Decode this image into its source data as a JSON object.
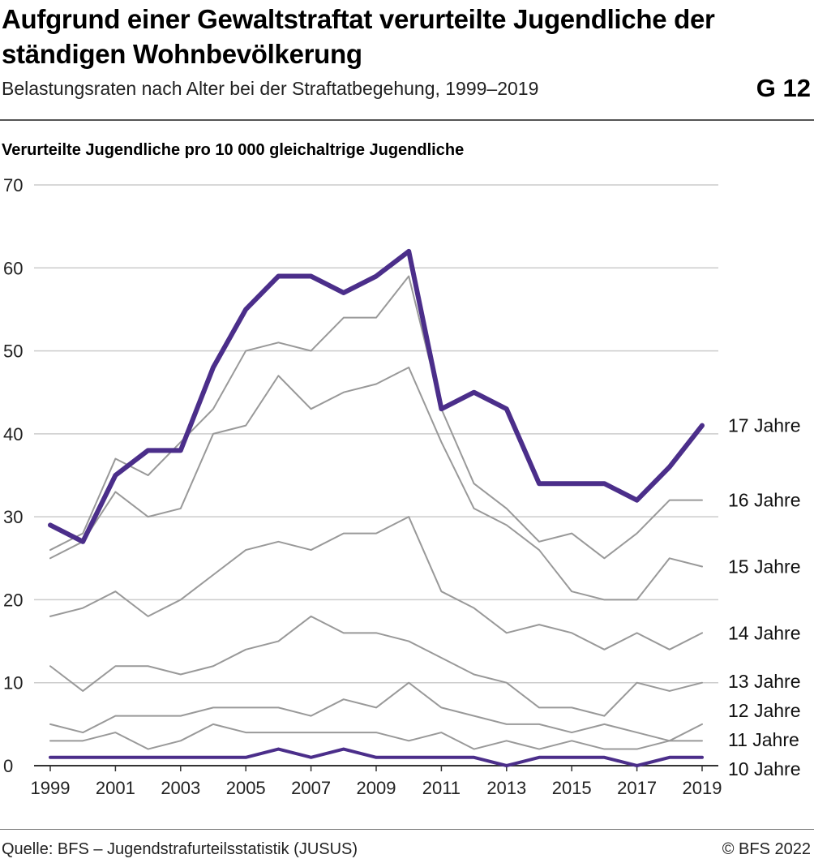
{
  "header": {
    "title": "Aufgrund einer Gewaltstraftat verurteilte Jugendliche der ständigen Wohnbevölkerung",
    "subtitle": "Belastungsraten nach Alter bei der Straftatbegehung, 1999–2019",
    "chart_id": "G 12"
  },
  "footer": {
    "source": "Quelle: BFS – Jugendstrafurteilsstatistik (JUSUS)",
    "copyright": "© BFS 2022"
  },
  "colors": {
    "highlight": "#4b2e8a",
    "other": "#999999",
    "grid": "#cccccc"
  },
  "chart_data": {
    "type": "line",
    "ylabel": "Verurteilte Jugendliche pro 10 000 gleichaltrige Jugendliche",
    "ylim": [
      0,
      70
    ],
    "yticks": [
      0,
      10,
      20,
      30,
      40,
      50,
      60,
      70
    ],
    "x": [
      1999,
      2000,
      2001,
      2002,
      2003,
      2004,
      2005,
      2006,
      2007,
      2008,
      2009,
      2010,
      2011,
      2012,
      2013,
      2014,
      2015,
      2016,
      2017,
      2018,
      2019
    ],
    "xticks": [
      1999,
      2001,
      2003,
      2005,
      2007,
      2009,
      2011,
      2013,
      2015,
      2017,
      2019
    ],
    "grid": true,
    "legend": "direct labels at line ends",
    "series": [
      {
        "name": "17 Jahre",
        "highlight": true,
        "values": [
          29,
          27,
          35,
          38,
          38,
          48,
          55,
          59,
          59,
          57,
          59,
          62,
          43,
          45,
          43,
          34,
          34,
          34,
          32,
          36,
          41
        ]
      },
      {
        "name": "16 Jahre",
        "highlight": false,
        "values": [
          26,
          28,
          37,
          35,
          39,
          43,
          50,
          51,
          50,
          54,
          54,
          59,
          43,
          34,
          31,
          27,
          28,
          25,
          28,
          32,
          32
        ]
      },
      {
        "name": "15 Jahre",
        "highlight": false,
        "values": [
          25,
          27,
          33,
          30,
          31,
          40,
          41,
          47,
          43,
          45,
          46,
          48,
          39,
          31,
          29,
          26,
          21,
          20,
          20,
          25,
          24
        ]
      },
      {
        "name": "14 Jahre",
        "highlight": false,
        "values": [
          18,
          19,
          21,
          18,
          20,
          23,
          26,
          27,
          26,
          28,
          28,
          30,
          21,
          19,
          16,
          17,
          16,
          14,
          16,
          14,
          16
        ]
      },
      {
        "name": "13 Jahre",
        "highlight": false,
        "values": [
          12,
          9,
          12,
          12,
          11,
          12,
          14,
          15,
          18,
          16,
          16,
          15,
          13,
          11,
          10,
          7,
          7,
          6,
          10,
          9,
          10
        ]
      },
      {
        "name": "12 Jahre",
        "highlight": false,
        "values": [
          5,
          4,
          6,
          6,
          6,
          7,
          7,
          7,
          6,
          8,
          7,
          10,
          7,
          6,
          5,
          5,
          4,
          5,
          4,
          3,
          5
        ]
      },
      {
        "name": "11 Jahre",
        "highlight": false,
        "values": [
          3,
          3,
          4,
          2,
          3,
          5,
          4,
          4,
          4,
          4,
          4,
          3,
          4,
          2,
          3,
          2,
          3,
          2,
          2,
          3,
          3
        ]
      },
      {
        "name": "10 Jahre",
        "highlight": true,
        "values": [
          1,
          1,
          1,
          1,
          1,
          1,
          1,
          2,
          1,
          2,
          1,
          1,
          1,
          1,
          0,
          1,
          1,
          1,
          0,
          1,
          1
        ]
      }
    ]
  }
}
